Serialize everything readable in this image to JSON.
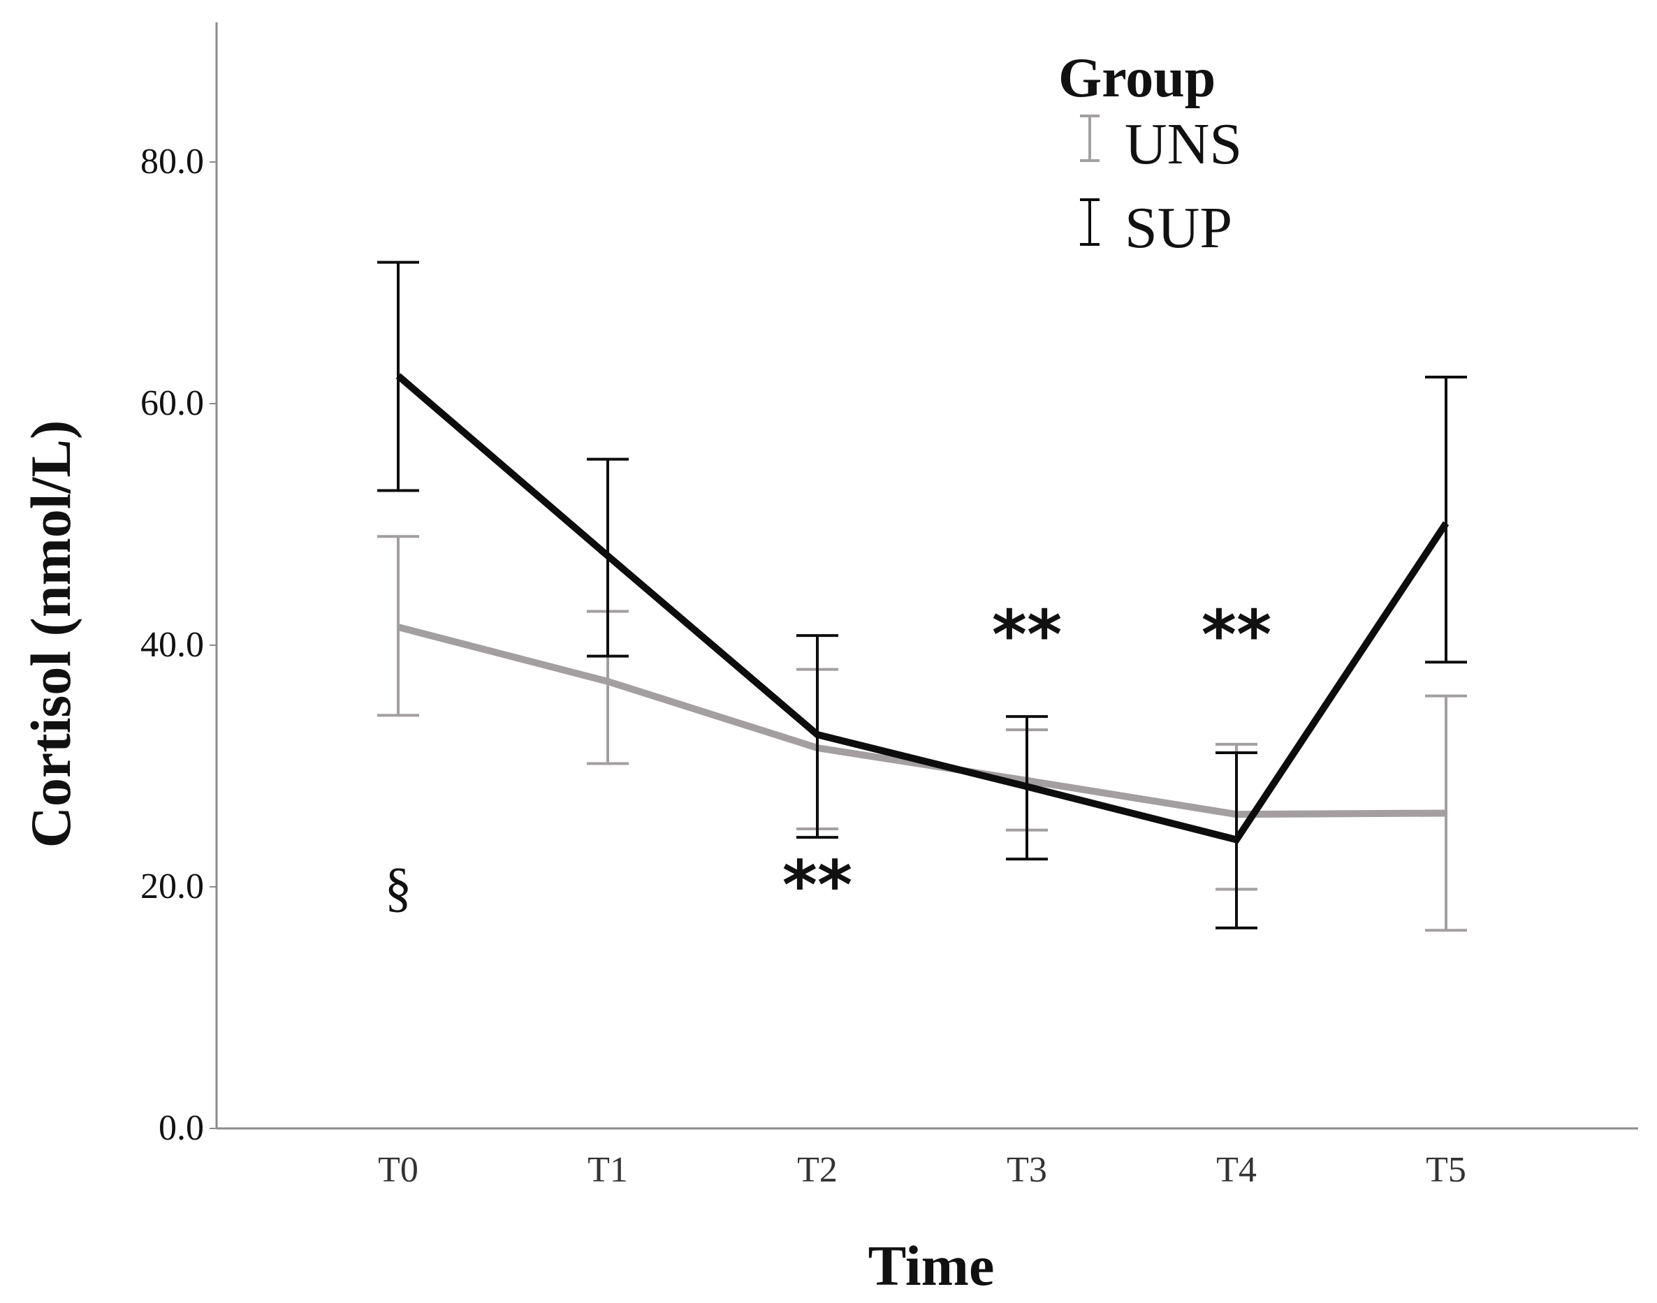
{
  "chart_data": {
    "type": "line",
    "title": "",
    "xlabel": "Time",
    "ylabel": "Cortisol (nmol/L)",
    "categories": [
      "T0",
      "T1",
      "T2",
      "T3",
      "T4",
      "T5"
    ],
    "ylim": [
      0,
      88
    ],
    "yticks": [
      0,
      20,
      40,
      60,
      80
    ],
    "ytick_labels": [
      "0.0",
      "20.0",
      "40.0",
      "60.0",
      "80.0"
    ],
    "grid": false,
    "legend": {
      "title": "Group",
      "position": "top-right"
    },
    "series": [
      {
        "name": "UNS",
        "color": "#a39fa0",
        "values": [
          41.5,
          37.0,
          31.5,
          28.8,
          26.0,
          26.1
        ],
        "error_low": [
          34.2,
          30.2,
          24.8,
          24.7,
          19.8,
          16.4
        ],
        "error_high": [
          49.0,
          42.8,
          38.0,
          33.0,
          31.8,
          35.8
        ]
      },
      {
        "name": "SUP",
        "color": "#0d0d0d",
        "values": [
          62.3,
          47.4,
          32.6,
          28.3,
          23.9,
          50.1
        ],
        "error_low": [
          52.8,
          39.1,
          24.1,
          22.3,
          16.6,
          38.6
        ],
        "error_high": [
          71.7,
          55.4,
          40.8,
          34.1,
          31.1,
          62.2
        ]
      }
    ],
    "annotations": [
      {
        "text": "§",
        "category": "T0",
        "y": 19.5
      },
      {
        "text": "**",
        "category": "T2",
        "y": 20.3
      },
      {
        "text": "**",
        "category": "T3",
        "y": 41.0
      },
      {
        "text": "**",
        "category": "T4",
        "y": 41.0
      }
    ]
  }
}
